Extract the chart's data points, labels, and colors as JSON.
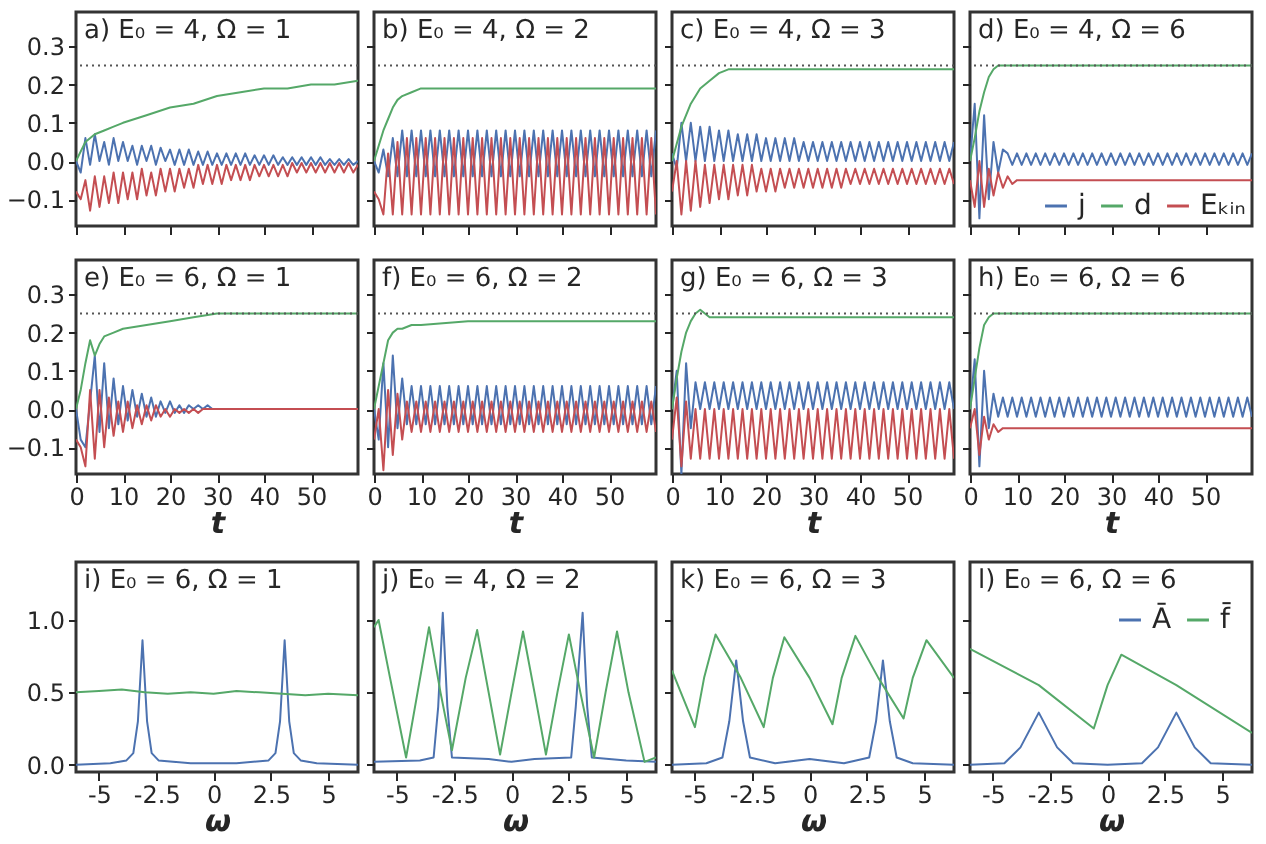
{
  "chart_data": [
    {
      "type": "line",
      "title": "a) E₀ = 4, Ω = 1",
      "xlim": [
        0,
        60
      ],
      "xticks": [
        0,
        10,
        20,
        30,
        40,
        50
      ],
      "ylim": [
        -0.17,
        0.39
      ],
      "yticks": [
        {
          "value": -0.1,
          "label": "−0.1"
        },
        {
          "value": 0,
          "label": "0.0"
        },
        {
          "value": 0.1,
          "label": "0.1"
        },
        {
          "value": 0.2,
          "label": "0.2"
        },
        {
          "value": 0.3,
          "label": "0.3"
        }
      ],
      "tick_labels": "y",
      "ref_lines": [
        {
          "axis": "y",
          "value": 0.25,
          "color": "#555555",
          "line_style": "dotted"
        }
      ],
      "x": [
        0,
        1,
        2,
        3,
        4,
        5,
        6,
        7,
        8,
        9,
        10,
        11,
        12,
        13,
        14,
        15,
        16,
        17,
        18,
        19,
        20,
        21,
        22,
        23,
        24,
        25,
        26,
        27,
        28,
        29,
        30,
        31,
        32,
        33,
        34,
        35,
        36,
        37,
        38,
        39,
        40,
        41,
        42,
        43,
        44,
        45,
        46,
        47,
        48,
        49,
        50,
        51,
        52,
        53,
        54,
        55,
        56,
        57,
        58,
        59,
        60
      ],
      "series": [
        {
          "color": "#4c72b0",
          "values": [
            0,
            -0.03,
            0.06,
            -0.01,
            0.07,
            0,
            0.05,
            -0.01,
            0.06,
            0,
            0.05,
            0,
            0.04,
            -0.01,
            0.04,
            0,
            0.04,
            -0.01,
            0.035,
            0,
            0.03,
            -0.01,
            0.03,
            -0.01,
            0.03,
            -0.01,
            0.025,
            -0.01,
            0.025,
            -0.01,
            0.02,
            -0.01,
            0.02,
            -0.01,
            0.02,
            -0.01,
            0.02,
            -0.01,
            0.015,
            -0.01,
            0.015,
            -0.01,
            0.015,
            -0.01,
            0.01,
            -0.01,
            0.01,
            -0.01,
            0.01,
            -0.01,
            0.01,
            -0.01,
            0.01,
            -0.01,
            0.005,
            -0.01,
            0.005,
            -0.01,
            0.005,
            -0.01,
            0
          ]
        },
        {
          "color": "#55a868",
          "x": [
            0,
            2,
            4,
            6,
            8,
            10,
            15,
            20,
            25,
            30,
            35,
            40,
            45,
            50,
            55,
            60
          ],
          "values": [
            0,
            0.05,
            0.07,
            0.08,
            0.09,
            0.1,
            0.12,
            0.14,
            0.15,
            0.17,
            0.18,
            0.19,
            0.19,
            0.2,
            0.2,
            0.21
          ]
        },
        {
          "color": "#c44e52",
          "values": [
            -0.08,
            -0.1,
            -0.05,
            -0.13,
            -0.04,
            -0.12,
            -0.04,
            -0.11,
            -0.03,
            -0.11,
            -0.03,
            -0.1,
            -0.03,
            -0.1,
            -0.02,
            -0.09,
            -0.03,
            -0.09,
            -0.02,
            -0.08,
            -0.02,
            -0.08,
            -0.02,
            -0.07,
            -0.02,
            -0.07,
            -0.01,
            -0.06,
            -0.01,
            -0.06,
            -0.01,
            -0.06,
            -0.01,
            -0.05,
            -0.01,
            -0.05,
            -0.01,
            -0.05,
            -0.01,
            -0.04,
            -0.01,
            -0.04,
            -0.01,
            -0.04,
            -0.01,
            -0.04,
            -0.005,
            -0.03,
            -0.005,
            -0.03,
            -0.005,
            -0.03,
            -0.005,
            -0.03,
            -0.005,
            -0.03,
            -0.005,
            -0.03,
            -0.005,
            -0.03,
            -0.01
          ]
        }
      ]
    },
    {
      "type": "line",
      "title": "b) E₀ = 4, Ω = 2",
      "xlim": [
        0,
        60
      ],
      "xticks": [
        0,
        10,
        20,
        30,
        40,
        50
      ],
      "ylim": [
        -0.17,
        0.39
      ],
      "yticks": [
        -0.1,
        0,
        0.1,
        0.2,
        0.3
      ],
      "tick_labels": false,
      "ref_lines": [
        {
          "axis": "y",
          "value": 0.25,
          "color": "#555555",
          "line_style": "dotted"
        }
      ],
      "x": [
        0,
        1,
        2,
        3,
        4,
        5,
        6,
        7,
        8,
        9,
        10,
        11,
        12,
        13,
        14,
        15,
        16,
        17,
        18,
        19,
        20,
        21,
        22,
        23,
        24,
        25,
        26,
        27,
        28,
        29,
        30,
        31,
        32,
        33,
        34,
        35,
        36,
        37,
        38,
        39,
        40,
        41,
        42,
        43,
        44,
        45,
        46,
        47,
        48,
        49,
        50,
        51,
        52,
        53,
        54,
        55,
        56,
        57,
        58,
        59,
        60
      ],
      "series": [
        {
          "color": "#4c72b0",
          "values": [
            0,
            -0.03,
            0.03,
            -0.04,
            0.06,
            -0.04,
            0.08,
            -0.04,
            0.08,
            -0.04,
            0.08,
            -0.04,
            0.08,
            -0.04,
            0.08,
            -0.04,
            0.08,
            -0.04,
            0.08,
            -0.04,
            0.08,
            -0.04,
            0.08,
            -0.04,
            0.08,
            -0.04,
            0.08,
            -0.04,
            0.08,
            -0.04,
            0.08,
            -0.04,
            0.08,
            -0.04,
            0.08,
            -0.04,
            0.08,
            -0.04,
            0.08,
            -0.04,
            0.08,
            -0.04,
            0.08,
            -0.04,
            0.08,
            -0.04,
            0.08,
            -0.04,
            0.08,
            -0.04,
            0.08,
            -0.04,
            0.08,
            -0.04,
            0.08,
            -0.04,
            0.08,
            -0.04,
            0.08,
            -0.04,
            0.08
          ]
        },
        {
          "color": "#55a868",
          "x": [
            0,
            1,
            2,
            3,
            4,
            5,
            6,
            8,
            10,
            15,
            60
          ],
          "values": [
            0,
            0.04,
            0.08,
            0.11,
            0.14,
            0.16,
            0.17,
            0.18,
            0.19,
            0.19,
            0.19
          ]
        },
        {
          "color": "#c44e52",
          "values": [
            -0.08,
            -0.1,
            -0.14,
            0.02,
            -0.14,
            0.05,
            -0.14,
            0.06,
            -0.14,
            0.06,
            -0.14,
            0.06,
            -0.14,
            0.06,
            -0.14,
            0.06,
            -0.14,
            0.06,
            -0.14,
            0.06,
            -0.14,
            0.06,
            -0.14,
            0.06,
            -0.14,
            0.06,
            -0.14,
            0.06,
            -0.14,
            0.06,
            -0.14,
            0.06,
            -0.14,
            0.06,
            -0.14,
            0.06,
            -0.14,
            0.06,
            -0.14,
            0.06,
            -0.14,
            0.06,
            -0.14,
            0.06,
            -0.14,
            0.06,
            -0.14,
            0.06,
            -0.14,
            0.06,
            -0.14,
            0.06,
            -0.14,
            0.06,
            -0.14,
            0.06,
            -0.14,
            0.06,
            -0.14,
            0.06,
            -0.14
          ]
        }
      ]
    },
    {
      "type": "line",
      "title": "c) E₀ = 4, Ω = 3",
      "xlim": [
        0,
        60
      ],
      "xticks": [
        0,
        10,
        20,
        30,
        40,
        50
      ],
      "ylim": [
        -0.17,
        0.39
      ],
      "yticks": [
        -0.1,
        0,
        0.1,
        0.2,
        0.3
      ],
      "tick_labels": false,
      "ref_lines": [
        {
          "axis": "y",
          "value": 0.25,
          "color": "#555555",
          "line_style": "dotted"
        }
      ],
      "x": [
        0,
        1,
        2,
        3,
        4,
        5,
        6,
        7,
        8,
        9,
        10,
        11,
        12,
        13,
        14,
        15,
        16,
        17,
        18,
        19,
        20,
        21,
        22,
        23,
        24,
        25,
        26,
        27,
        28,
        29,
        30,
        31,
        32,
        33,
        34,
        35,
        36,
        37,
        38,
        39,
        40,
        41,
        42,
        43,
        44,
        45,
        46,
        47,
        48,
        49,
        50,
        51,
        52,
        53,
        54,
        55,
        56,
        57,
        58,
        59,
        60
      ],
      "series": [
        {
          "color": "#4c72b0",
          "values": [
            0.02,
            -0.02,
            0.1,
            0,
            0.1,
            0,
            0.09,
            0,
            0.09,
            0,
            0.08,
            0,
            0.08,
            0,
            0.07,
            0,
            0.07,
            0,
            0.07,
            0,
            0.06,
            0,
            0.06,
            0,
            0.06,
            0,
            0.06,
            0,
            0.05,
            0,
            0.05,
            0,
            0.05,
            0,
            0.05,
            0,
            0.05,
            0,
            0.05,
            0,
            0.05,
            0,
            0.05,
            0,
            0.05,
            0,
            0.05,
            0,
            0.05,
            0,
            0.05,
            0,
            0.05,
            0,
            0.05,
            0,
            0.05,
            0,
            0.05,
            0,
            0.05
          ]
        },
        {
          "color": "#55a868",
          "x": [
            0,
            2,
            4,
            6,
            8,
            10,
            12,
            15,
            20,
            60
          ],
          "values": [
            0,
            0.09,
            0.15,
            0.19,
            0.21,
            0.23,
            0.24,
            0.24,
            0.24,
            0.24
          ]
        },
        {
          "color": "#c44e52",
          "values": [
            -0.08,
            0,
            -0.14,
            0,
            -0.13,
            0,
            -0.12,
            -0.01,
            -0.11,
            -0.01,
            -0.1,
            -0.01,
            -0.1,
            -0.01,
            -0.09,
            -0.01,
            -0.09,
            -0.01,
            -0.08,
            -0.02,
            -0.08,
            -0.02,
            -0.08,
            -0.02,
            -0.07,
            -0.02,
            -0.07,
            -0.02,
            -0.07,
            -0.02,
            -0.07,
            -0.02,
            -0.07,
            -0.02,
            -0.07,
            -0.02,
            -0.07,
            -0.02,
            -0.06,
            -0.02,
            -0.06,
            -0.02,
            -0.06,
            -0.02,
            -0.06,
            -0.02,
            -0.06,
            -0.02,
            -0.06,
            -0.02,
            -0.06,
            -0.02,
            -0.06,
            -0.02,
            -0.06,
            -0.02,
            -0.06,
            -0.02,
            -0.06,
            -0.02,
            -0.06
          ]
        }
      ]
    },
    {
      "type": "line",
      "title": "d) E₀ = 4, Ω = 6",
      "xlim": [
        0,
        60
      ],
      "xticks": [
        0,
        10,
        20,
        30,
        40,
        50
      ],
      "ylim": [
        -0.17,
        0.39
      ],
      "yticks": [
        -0.1,
        0,
        0.1,
        0.2,
        0.3
      ],
      "tick_labels": false,
      "legend": "bottom right",
      "ref_lines": [
        {
          "axis": "y",
          "value": 0.25,
          "color": "#555555",
          "line_style": "dotted"
        }
      ],
      "x": [
        0,
        1,
        2,
        3,
        4,
        5,
        6,
        7,
        8,
        9,
        10,
        11,
        12,
        13,
        14,
        15,
        16,
        17,
        18,
        19,
        20,
        21,
        22,
        23,
        24,
        25,
        26,
        27,
        28,
        29,
        30,
        31,
        32,
        33,
        34,
        35,
        36,
        37,
        38,
        39,
        40,
        41,
        42,
        43,
        44,
        45,
        46,
        47,
        48,
        49,
        50,
        51,
        52,
        53,
        54,
        55,
        56,
        57,
        58,
        59,
        60
      ],
      "series": [
        {
          "name": "j",
          "color": "#4c72b0",
          "values": [
            0,
            0.15,
            -0.15,
            0.12,
            -0.1,
            0.05,
            -0.03,
            0.03,
            0.02,
            -0.01,
            0.02,
            -0.01,
            0.02,
            -0.01,
            0.02,
            -0.01,
            0.02,
            -0.01,
            0.02,
            -0.01,
            0.02,
            -0.01,
            0.02,
            -0.01,
            0.02,
            -0.01,
            0.02,
            -0.01,
            0.02,
            -0.01,
            0.02,
            -0.01,
            0.02,
            -0.01,
            0.02,
            -0.01,
            0.02,
            -0.01,
            0.02,
            -0.01,
            0.02,
            -0.01,
            0.02,
            -0.01,
            0.02,
            -0.01,
            0.02,
            -0.01,
            0.02,
            -0.01,
            0.02,
            -0.01,
            0.02,
            -0.01,
            0.02,
            -0.01,
            0.02,
            -0.01,
            0.02,
            -0.01,
            0.02
          ]
        },
        {
          "name": "d",
          "color": "#55a868",
          "x": [
            0,
            1,
            2,
            3,
            4,
            5,
            6,
            8,
            60
          ],
          "values": [
            0,
            0.06,
            0.13,
            0.18,
            0.22,
            0.24,
            0.25,
            0.25,
            0.25
          ]
        },
        {
          "name": "Eₖᵢₙ",
          "color": "#c44e52",
          "x": [
            0,
            1,
            2,
            3,
            4,
            5,
            6,
            7,
            8,
            9,
            10,
            60
          ],
          "values": [
            -0.05,
            -0.12,
            0,
            -0.12,
            -0.02,
            -0.09,
            -0.03,
            -0.07,
            -0.04,
            -0.06,
            -0.05,
            -0.05
          ]
        }
      ]
    },
    {
      "type": "line",
      "title": "e) E₀ = 6, Ω = 1",
      "xlim": [
        0,
        60
      ],
      "xticks": [
        0,
        10,
        20,
        30,
        40,
        50
      ],
      "ylim": [
        -0.17,
        0.39
      ],
      "yticks": [
        {
          "value": -0.1,
          "label": "−0.1"
        },
        {
          "value": 0,
          "label": "0.0"
        },
        {
          "value": 0.1,
          "label": "0.1"
        },
        {
          "value": 0.2,
          "label": "0.2"
        },
        {
          "value": 0.3,
          "label": "0.3"
        }
      ],
      "xlabel": "t",
      "ref_lines": [
        {
          "axis": "y",
          "value": 0.25,
          "color": "#555555",
          "line_style": "dotted"
        }
      ],
      "x": [
        0,
        1,
        2,
        3,
        4,
        5,
        6,
        7,
        8,
        9,
        10,
        11,
        12,
        13,
        14,
        15,
        16,
        17,
        18,
        19,
        20,
        21,
        22,
        23,
        24,
        25,
        26,
        27,
        28,
        29,
        30,
        60
      ],
      "series": [
        {
          "color": "#4c72b0",
          "values": [
            0,
            -0.08,
            -0.1,
            0.02,
            0.14,
            -0.06,
            0.12,
            -0.05,
            0.08,
            -0.04,
            0.06,
            -0.03,
            0.05,
            -0.02,
            0.04,
            -0.02,
            0.03,
            -0.02,
            0.02,
            -0.01,
            0.02,
            -0.01,
            0.01,
            -0.01,
            0.01,
            0,
            0.01,
            0,
            0.01,
            0,
            0,
            0
          ]
        },
        {
          "color": "#55a868",
          "x": [
            0,
            1,
            2,
            3,
            3.5,
            4,
            5,
            6,
            8,
            10,
            15,
            20,
            25,
            30,
            40,
            60
          ],
          "values": [
            0,
            0.05,
            0.12,
            0.18,
            0.16,
            0.14,
            0.17,
            0.19,
            0.2,
            0.21,
            0.22,
            0.23,
            0.24,
            0.25,
            0.25,
            0.25
          ]
        },
        {
          "color": "#c44e52",
          "values": [
            -0.08,
            -0.1,
            -0.15,
            0.05,
            -0.13,
            0.05,
            -0.1,
            0.03,
            -0.07,
            0.02,
            -0.06,
            0.02,
            -0.05,
            0.01,
            -0.04,
            0.01,
            -0.03,
            0.01,
            -0.02,
            0,
            -0.02,
            0,
            -0.01,
            0,
            -0.01,
            0,
            -0.01,
            0,
            0,
            0,
            0,
            0
          ]
        }
      ]
    },
    {
      "type": "line",
      "title": "f) E₀ = 6, Ω = 2",
      "xlim": [
        0,
        60
      ],
      "xticks": [
        0,
        10,
        20,
        30,
        40,
        50
      ],
      "ylim": [
        -0.17,
        0.39
      ],
      "yticks": [
        -0.1,
        0,
        0.1,
        0.2,
        0.3
      ],
      "xlabel": "t",
      "tick_labels": "x",
      "ref_lines": [
        {
          "axis": "y",
          "value": 0.25,
          "color": "#555555",
          "line_style": "dotted"
        }
      ],
      "x": [
        0,
        1,
        2,
        3,
        4,
        5,
        6,
        7,
        8,
        9,
        10,
        11,
        12,
        13,
        14,
        15,
        16,
        17,
        18,
        19,
        20,
        21,
        22,
        23,
        24,
        25,
        26,
        27,
        28,
        29,
        30,
        31,
        32,
        33,
        34,
        35,
        36,
        37,
        38,
        39,
        40,
        41,
        42,
        43,
        44,
        45,
        46,
        47,
        48,
        49,
        50,
        51,
        52,
        53,
        54,
        55,
        56,
        57,
        58,
        59,
        60
      ],
      "series": [
        {
          "color": "#4c72b0",
          "values": [
            0,
            -0.08,
            0.12,
            -0.1,
            0.14,
            -0.05,
            0.08,
            -0.04,
            0.06,
            -0.04,
            0.06,
            -0.04,
            0.06,
            -0.04,
            0.06,
            -0.04,
            0.06,
            -0.04,
            0.06,
            -0.04,
            0.06,
            -0.04,
            0.06,
            -0.04,
            0.06,
            -0.04,
            0.06,
            -0.04,
            0.06,
            -0.04,
            0.06,
            -0.04,
            0.06,
            -0.04,
            0.06,
            -0.04,
            0.06,
            -0.04,
            0.06,
            -0.04,
            0.06,
            -0.04,
            0.06,
            -0.04,
            0.06,
            -0.04,
            0.06,
            -0.04,
            0.06,
            -0.04,
            0.06,
            -0.04,
            0.06,
            -0.04,
            0.06,
            -0.04,
            0.06,
            -0.04,
            0.06,
            -0.04,
            0.06
          ]
        },
        {
          "color": "#55a868",
          "x": [
            0,
            1,
            2,
            3,
            4,
            5,
            6,
            8,
            10,
            20,
            40,
            60
          ],
          "values": [
            0,
            0.06,
            0.12,
            0.18,
            0.2,
            0.21,
            0.21,
            0.22,
            0.22,
            0.23,
            0.23,
            0.23
          ]
        },
        {
          "color": "#c44e52",
          "values": [
            -0.08,
            0,
            -0.16,
            0.05,
            -0.12,
            0.04,
            -0.08,
            0.02,
            -0.06,
            0.02,
            -0.06,
            0.02,
            -0.06,
            0.02,
            -0.06,
            0.02,
            -0.06,
            0.02,
            -0.06,
            0.02,
            -0.06,
            0.02,
            -0.06,
            0.02,
            -0.06,
            0.02,
            -0.06,
            0.02,
            -0.06,
            0.02,
            -0.06,
            0.02,
            -0.06,
            0.02,
            -0.06,
            0.02,
            -0.06,
            0.02,
            -0.06,
            0.02,
            -0.06,
            0.02,
            -0.06,
            0.02,
            -0.06,
            0.02,
            -0.06,
            0.02,
            -0.06,
            0.02,
            -0.06,
            0.02,
            -0.06,
            0.02,
            -0.06,
            0.02,
            -0.06,
            0.02,
            -0.06,
            0.02,
            -0.06
          ]
        }
      ]
    },
    {
      "type": "line",
      "title": "g) E₀ = 6, Ω = 3",
      "xlim": [
        0,
        60
      ],
      "xticks": [
        0,
        10,
        20,
        30,
        40,
        50
      ],
      "ylim": [
        -0.17,
        0.39
      ],
      "yticks": [
        -0.1,
        0,
        0.1,
        0.2,
        0.3
      ],
      "xlabel": "t",
      "tick_labels": "x",
      "ref_lines": [
        {
          "axis": "y",
          "value": 0.25,
          "color": "#555555",
          "line_style": "dotted"
        }
      ],
      "x": [
        0,
        1,
        2,
        3,
        4,
        5,
        6,
        7,
        8,
        9,
        10,
        11,
        12,
        13,
        14,
        15,
        16,
        17,
        18,
        19,
        20,
        21,
        22,
        23,
        24,
        25,
        26,
        27,
        28,
        29,
        30,
        31,
        32,
        33,
        34,
        35,
        36,
        37,
        38,
        39,
        40,
        41,
        42,
        43,
        44,
        45,
        46,
        47,
        48,
        49,
        50,
        51,
        52,
        53,
        54,
        55,
        56,
        57,
        58,
        59,
        60
      ],
      "series": [
        {
          "color": "#4c72b0",
          "values": [
            0,
            0.1,
            -0.17,
            0.12,
            -0.05,
            0.07,
            0,
            0.07,
            0,
            0.07,
            0,
            0.07,
            0,
            0.07,
            0,
            0.07,
            0,
            0.07,
            0,
            0.07,
            0,
            0.07,
            0,
            0.07,
            0,
            0.07,
            0,
            0.07,
            0,
            0.07,
            0,
            0.07,
            0,
            0.07,
            0,
            0.07,
            0,
            0.07,
            0,
            0.07,
            0,
            0.07,
            0,
            0.07,
            0,
            0.07,
            0,
            0.07,
            0,
            0.07,
            0,
            0.07,
            0,
            0.07,
            0,
            0.07,
            0,
            0.07,
            0,
            0.07,
            0
          ]
        },
        {
          "color": "#55a868",
          "x": [
            0,
            1,
            2,
            3,
            4,
            5,
            6,
            7,
            8,
            10,
            15,
            60
          ],
          "values": [
            0,
            0.08,
            0.15,
            0.2,
            0.23,
            0.25,
            0.26,
            0.25,
            0.24,
            0.24,
            0.24,
            0.24
          ]
        },
        {
          "color": "#c44e52",
          "values": [
            -0.08,
            0.03,
            -0.15,
            0.02,
            -0.13,
            0,
            -0.13,
            0,
            -0.13,
            0,
            -0.13,
            0,
            -0.13,
            0,
            -0.13,
            0,
            -0.13,
            0,
            -0.13,
            0,
            -0.13,
            0,
            -0.13,
            0,
            -0.13,
            0,
            -0.13,
            0,
            -0.13,
            0,
            -0.13,
            0,
            -0.13,
            0,
            -0.13,
            0,
            -0.13,
            0,
            -0.13,
            0,
            -0.13,
            0,
            -0.13,
            0,
            -0.13,
            0,
            -0.13,
            0,
            -0.13,
            0,
            -0.13,
            0,
            -0.13,
            0,
            -0.13,
            0,
            -0.13,
            0,
            -0.13,
            0,
            -0.13
          ]
        }
      ]
    },
    {
      "type": "line",
      "title": "h) E₀ = 6, Ω = 6",
      "xlim": [
        0,
        60
      ],
      "xticks": [
        0,
        10,
        20,
        30,
        40,
        50
      ],
      "ylim": [
        -0.17,
        0.39
      ],
      "yticks": [
        -0.1,
        0,
        0.1,
        0.2,
        0.3
      ],
      "xlabel": "t",
      "tick_labels": "x",
      "ref_lines": [
        {
          "axis": "y",
          "value": 0.25,
          "color": "#555555",
          "line_style": "dotted"
        }
      ],
      "x": [
        0,
        1,
        2,
        3,
        4,
        5,
        6,
        7,
        8,
        9,
        10,
        11,
        12,
        13,
        14,
        15,
        16,
        17,
        18,
        19,
        20,
        21,
        22,
        23,
        24,
        25,
        26,
        27,
        28,
        29,
        30,
        31,
        32,
        33,
        34,
        35,
        36,
        37,
        38,
        39,
        40,
        41,
        42,
        43,
        44,
        45,
        46,
        47,
        48,
        49,
        50,
        51,
        52,
        53,
        54,
        55,
        56,
        57,
        58,
        59,
        60
      ],
      "series": [
        {
          "color": "#4c72b0",
          "values": [
            0,
            0.13,
            -0.15,
            0.1,
            -0.05,
            0.04,
            -0.02,
            0.03,
            -0.02,
            0.03,
            -0.02,
            0.03,
            -0.02,
            0.03,
            -0.02,
            0.03,
            -0.02,
            0.03,
            -0.02,
            0.03,
            -0.02,
            0.03,
            -0.02,
            0.03,
            -0.02,
            0.03,
            -0.02,
            0.03,
            -0.02,
            0.03,
            -0.02,
            0.03,
            -0.02,
            0.03,
            -0.02,
            0.03,
            -0.02,
            0.03,
            -0.02,
            0.03,
            -0.02,
            0.03,
            -0.02,
            0.03,
            -0.02,
            0.03,
            -0.02,
            0.03,
            -0.02,
            0.03,
            -0.02,
            0.03,
            -0.02,
            0.03,
            -0.02,
            0.03,
            -0.02,
            0.03,
            -0.02,
            0.03,
            -0.02
          ]
        },
        {
          "color": "#55a868",
          "x": [
            0,
            1,
            2,
            3,
            4,
            5,
            60
          ],
          "values": [
            0,
            0.08,
            0.16,
            0.22,
            0.24,
            0.25,
            0.25
          ]
        },
        {
          "color": "#c44e52",
          "x": [
            0,
            1,
            2,
            3,
            4,
            5,
            6,
            7,
            60
          ],
          "values": [
            -0.05,
            0,
            -0.12,
            -0.02,
            -0.08,
            -0.04,
            -0.06,
            -0.05,
            -0.05
          ]
        }
      ]
    },
    {
      "type": "line",
      "title": "i) E₀ = 6, Ω = 1",
      "xlim": [
        -6,
        6.3
      ],
      "xticks": [
        -5,
        -2.5,
        0,
        2.5,
        5
      ],
      "ylim": [
        -0.05,
        1.4
      ],
      "yticks": [
        {
          "value": 0,
          "label": "0.0"
        },
        {
          "value": 0.5,
          "label": "0.5"
        },
        {
          "value": 1,
          "label": "1.0"
        }
      ],
      "xlabel": "ω",
      "series": [
        {
          "color": "#4c72b0",
          "x": [
            -6,
            -4.5,
            -3.8,
            -3.5,
            -3.3,
            -3.1,
            -2.9,
            -2.7,
            -2.4,
            -1,
            0,
            1,
            2.4,
            2.7,
            2.9,
            3.1,
            3.3,
            3.5,
            3.8,
            4.5,
            6.3
          ],
          "values": [
            0,
            0.01,
            0.03,
            0.08,
            0.3,
            0.86,
            0.3,
            0.08,
            0.03,
            0.01,
            0.01,
            0.01,
            0.03,
            0.08,
            0.3,
            0.86,
            0.3,
            0.08,
            0.03,
            0.01,
            0
          ]
        },
        {
          "color": "#55a868",
          "x": [
            -6,
            -5,
            -4,
            -3,
            -2,
            -1,
            0,
            1,
            2,
            3,
            4,
            5,
            6.3
          ],
          "values": [
            0.5,
            0.51,
            0.52,
            0.5,
            0.49,
            0.5,
            0.49,
            0.51,
            0.5,
            0.49,
            0.48,
            0.49,
            0.48
          ]
        }
      ]
    },
    {
      "type": "line",
      "title": "j) E₀ = 4, Ω = 2",
      "xlim": [
        -6,
        6.3
      ],
      "xticks": [
        -5,
        -2.5,
        0,
        2.5,
        5
      ],
      "ylim": [
        -0.05,
        1.4
      ],
      "yticks": [
        0,
        0.5,
        1
      ],
      "xlabel": "ω",
      "tick_labels": "x",
      "series": [
        {
          "color": "#4c72b0",
          "x": [
            -6,
            -4,
            -3.4,
            -3.2,
            -3,
            -2.8,
            -2.6,
            -1,
            0,
            1,
            2.6,
            2.8,
            3.1,
            3.3,
            3.5,
            5,
            6.3
          ],
          "values": [
            0.02,
            0.03,
            0.05,
            0.4,
            1.05,
            0.4,
            0.05,
            0.04,
            0.02,
            0.04,
            0.05,
            0.4,
            1.05,
            0.4,
            0.05,
            0.03,
            0.02
          ]
        },
        {
          "color": "#55a868",
          "x": [
            -6,
            -5.8,
            -5.3,
            -4.6,
            -4.1,
            -3.6,
            -3.1,
            -2.6,
            -2,
            -1.5,
            -1,
            -0.5,
            0,
            0.5,
            1,
            1.5,
            2,
            2.5,
            3,
            3.6,
            4.1,
            4.6,
            5.1,
            5.8,
            6.3
          ],
          "values": [
            0.95,
            1,
            0.6,
            0.05,
            0.5,
            0.95,
            0.5,
            0.1,
            0.6,
            0.93,
            0.5,
            0.07,
            0.5,
            0.92,
            0.5,
            0.07,
            0.5,
            0.9,
            0.5,
            0.05,
            0.5,
            0.92,
            0.5,
            0.02,
            0.05
          ]
        }
      ]
    },
    {
      "type": "line",
      "title": "k) E₀ = 6, Ω = 3",
      "xlim": [
        -6,
        6.3
      ],
      "xticks": [
        -5,
        -2.5,
        0,
        2.5,
        5
      ],
      "ylim": [
        -0.05,
        1.4
      ],
      "yticks": [
        0,
        0.5,
        1
      ],
      "xlabel": "ω",
      "tick_labels": "x",
      "series": [
        {
          "color": "#4c72b0",
          "x": [
            -6,
            -4.5,
            -3.8,
            -3.5,
            -3.2,
            -2.9,
            -2.6,
            -1.5,
            0,
            1.5,
            2.6,
            2.9,
            3.2,
            3.5,
            3.8,
            4.5,
            6.3
          ],
          "values": [
            0,
            0.01,
            0.05,
            0.3,
            0.72,
            0.3,
            0.05,
            0.01,
            0.04,
            0.01,
            0.05,
            0.3,
            0.72,
            0.3,
            0.05,
            0.01,
            0
          ]
        },
        {
          "color": "#55a868",
          "x": [
            -6,
            -5,
            -4.6,
            -4.1,
            -3,
            -2,
            -1.6,
            -1.1,
            0,
            1,
            1.4,
            2,
            3,
            4.1,
            4.5,
            5.1,
            6.3
          ],
          "values": [
            0.65,
            0.26,
            0.6,
            0.9,
            0.6,
            0.26,
            0.6,
            0.88,
            0.6,
            0.28,
            0.6,
            0.89,
            0.6,
            0.32,
            0.6,
            0.86,
            0.6
          ]
        }
      ]
    },
    {
      "type": "line",
      "title": "l) E₀ = 6, Ω = 6",
      "xlim": [
        -6,
        6.3
      ],
      "xticks": [
        -5,
        -2.5,
        0,
        2.5,
        5
      ],
      "ylim": [
        -0.05,
        1.4
      ],
      "yticks": [
        0,
        0.5,
        1
      ],
      "xlabel": "ω",
      "tick_labels": "x",
      "legend": "top right",
      "series": [
        {
          "name": "Ā",
          "color": "#4c72b0",
          "x": [
            -6,
            -4.5,
            -3.8,
            -3,
            -2.2,
            -1.5,
            0,
            1.5,
            2.2,
            3,
            3.8,
            4.5,
            6.3
          ],
          "values": [
            0,
            0.01,
            0.12,
            0.36,
            0.12,
            0.01,
            0,
            0.01,
            0.12,
            0.36,
            0.12,
            0.01,
            0
          ]
        },
        {
          "name": "f̄",
          "color": "#55a868",
          "x": [
            -6,
            -3,
            -0.6,
            0,
            0.6,
            3,
            6.3
          ],
          "values": [
            0.8,
            0.55,
            0.25,
            0.55,
            0.76,
            0.55,
            0.22
          ]
        }
      ]
    }
  ]
}
